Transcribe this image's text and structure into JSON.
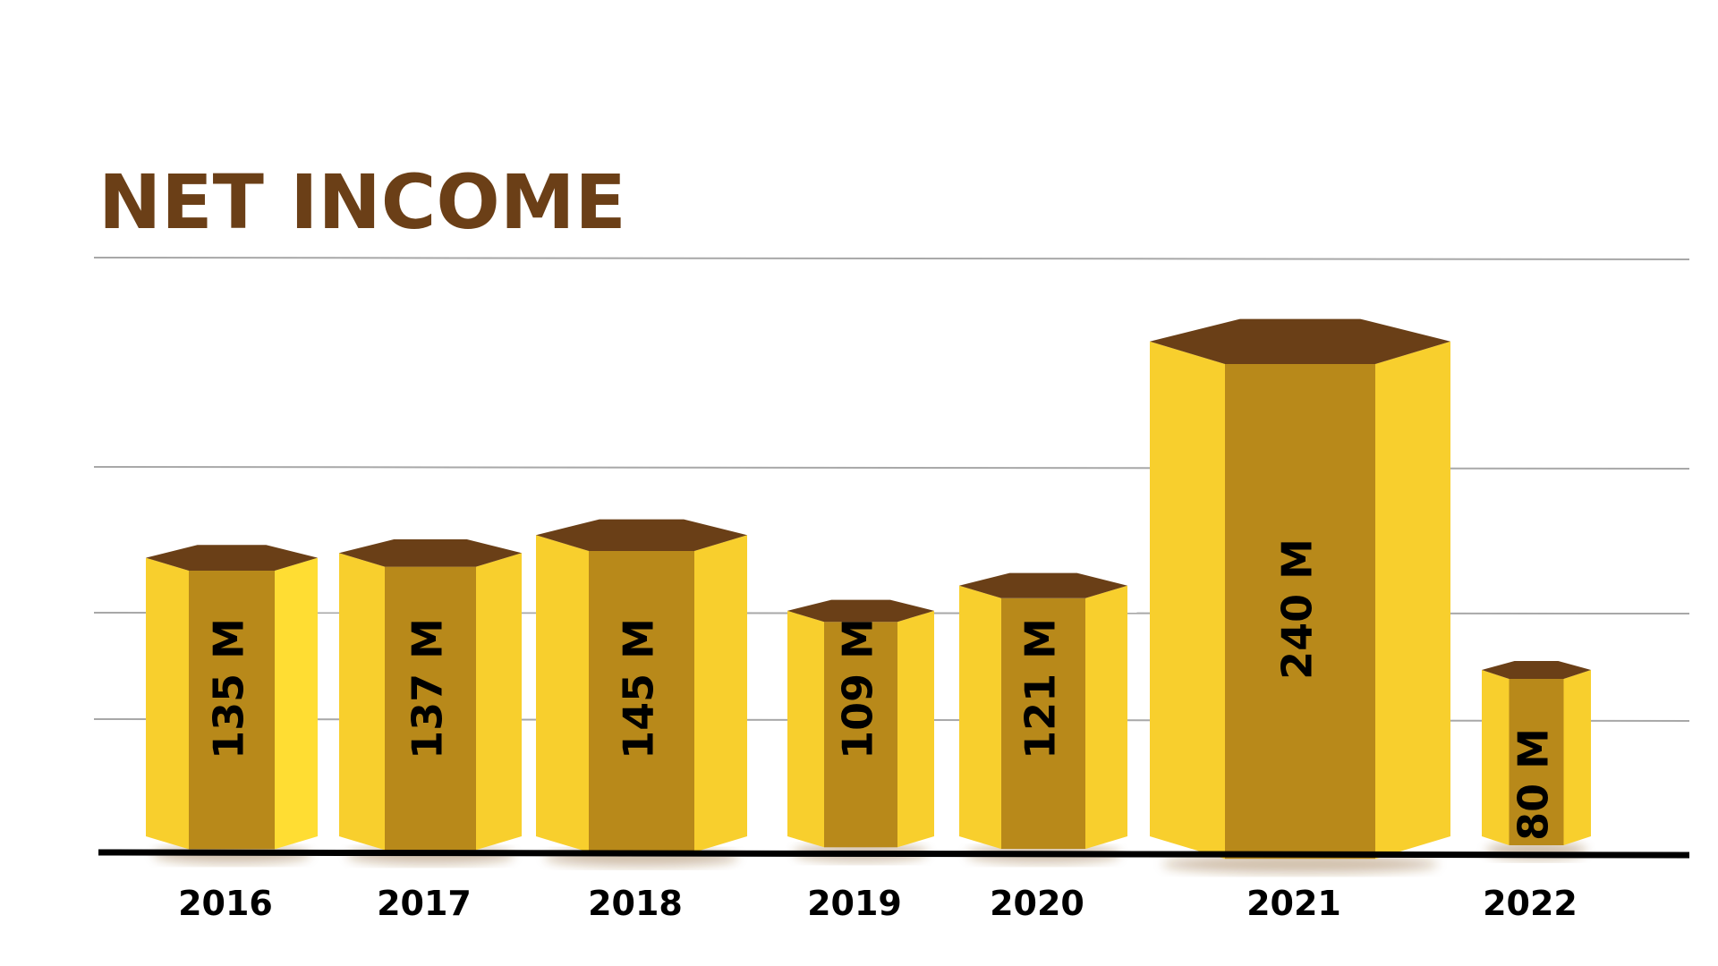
{
  "chart_data": {
    "type": "bar",
    "title": "NET INCOME",
    "categories": [
      "2016",
      "2017",
      "2018",
      "2019",
      "2020",
      "2021",
      "2022"
    ],
    "values": [
      135,
      137,
      145,
      109,
      121,
      240,
      80
    ],
    "value_labels": [
      "135 M",
      "137 M",
      "145 M",
      "109 M",
      "121 M",
      "240 M",
      "80 M"
    ],
    "xlabel": "",
    "ylabel": "",
    "ylim": [
      0,
      240
    ],
    "grid": true,
    "legend": "none"
  },
  "colors": {
    "title": "#6b3f17",
    "bar_front": "#b8891a",
    "bar_side": "#f8cf2d",
    "bar_side_light": "#ffdd33",
    "bar_top": "#6a3f17",
    "gridline": "#a8a8a8",
    "baseline": "#000000",
    "shadow": "#7a4a10"
  }
}
